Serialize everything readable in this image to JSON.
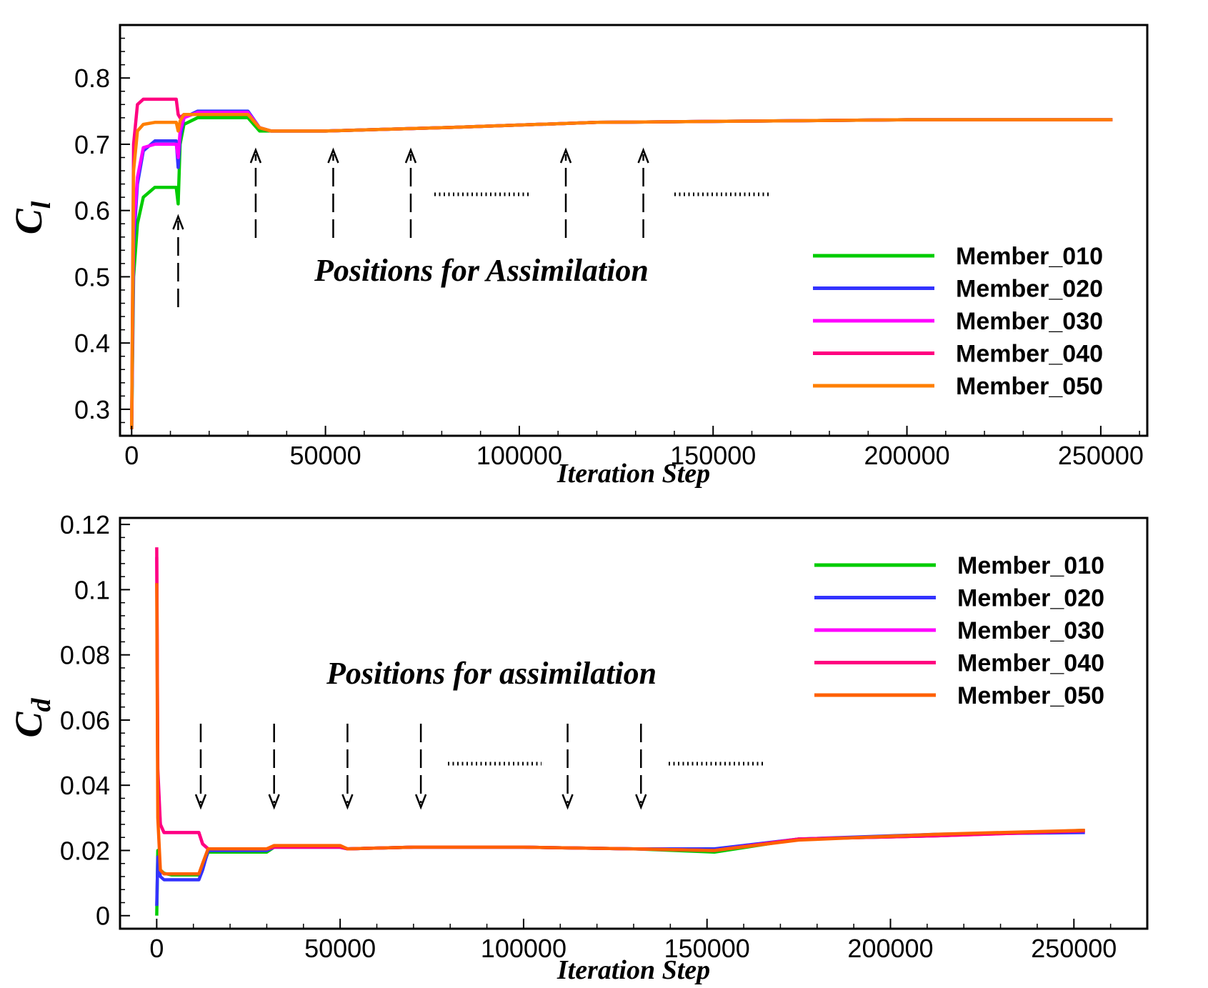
{
  "chart_data": [
    {
      "type": "line",
      "title": "",
      "xlabel": "Iteration Step",
      "ylabel_main": "C",
      "ylabel_sub": "l",
      "xlim": [
        -3000,
        262000
      ],
      "ylim": [
        0.26,
        0.88
      ],
      "x_ticks": [
        "0",
        "50000",
        "100000",
        "150000",
        "200000",
        "250000"
      ],
      "y_ticks": [
        "0.3",
        "0.4",
        "0.5",
        "0.6",
        "0.7",
        "0.8"
      ],
      "grid": false,
      "legend_position": "lower-right",
      "annotation": "Positions for Assimilation",
      "assimilation_steps": [
        12000,
        32000,
        52000,
        72000,
        112000,
        132000
      ],
      "series": [
        {
          "name": "Member_010",
          "color": "#00cc00",
          "x": [
            0,
            500,
            1500,
            3000,
            6000,
            11500,
            12000,
            12500,
            13500,
            17000,
            30000,
            33000,
            36000,
            50000,
            80000,
            120000,
            160000,
            200000,
            253000
          ],
          "y": [
            0.27,
            0.5,
            0.58,
            0.62,
            0.635,
            0.635,
            0.61,
            0.7,
            0.73,
            0.74,
            0.74,
            0.72,
            0.72,
            0.72,
            0.725,
            0.733,
            0.735,
            0.737,
            0.737
          ]
        },
        {
          "name": "Member_020",
          "color": "#3333ff",
          "x": [
            0,
            500,
            1500,
            3000,
            6000,
            11500,
            12000,
            12500,
            13500,
            17000,
            30000,
            33000,
            36000,
            50000,
            80000,
            120000,
            160000,
            200000,
            253000
          ],
          "y": [
            0.27,
            0.55,
            0.64,
            0.69,
            0.705,
            0.705,
            0.665,
            0.71,
            0.74,
            0.75,
            0.75,
            0.725,
            0.72,
            0.72,
            0.725,
            0.733,
            0.735,
            0.737,
            0.737
          ]
        },
        {
          "name": "Member_030",
          "color": "#ff00ff",
          "x": [
            0,
            500,
            1500,
            3000,
            6000,
            11500,
            12000,
            12500,
            13500,
            17000,
            30000,
            33000,
            36000,
            50000,
            80000,
            120000,
            160000,
            200000,
            253000
          ],
          "y": [
            0.27,
            0.57,
            0.65,
            0.695,
            0.7,
            0.7,
            0.68,
            0.72,
            0.74,
            0.748,
            0.748,
            0.725,
            0.72,
            0.72,
            0.725,
            0.733,
            0.735,
            0.737,
            0.737
          ]
        },
        {
          "name": "Member_040",
          "color": "#ff0080",
          "x": [
            0,
            500,
            1500,
            3000,
            6000,
            11500,
            12000,
            12500,
            13500,
            17000,
            30000,
            33000,
            36000,
            50000,
            80000,
            120000,
            160000,
            200000,
            253000
          ],
          "y": [
            0.27,
            0.7,
            0.76,
            0.768,
            0.768,
            0.768,
            0.745,
            0.74,
            0.745,
            0.745,
            0.745,
            0.725,
            0.72,
            0.72,
            0.725,
            0.733,
            0.735,
            0.737,
            0.737
          ]
        },
        {
          "name": "Member_050",
          "color": "#ff7f00",
          "x": [
            0,
            500,
            1500,
            3000,
            6000,
            11500,
            12000,
            12500,
            13500,
            17000,
            30000,
            33000,
            36000,
            50000,
            80000,
            120000,
            160000,
            200000,
            253000
          ],
          "y": [
            0.27,
            0.66,
            0.72,
            0.73,
            0.733,
            0.733,
            0.72,
            0.735,
            0.745,
            0.745,
            0.745,
            0.725,
            0.72,
            0.72,
            0.725,
            0.733,
            0.735,
            0.737,
            0.737
          ]
        }
      ]
    },
    {
      "type": "line",
      "title": "",
      "xlabel": "Iteration Step",
      "ylabel_main": "C",
      "ylabel_sub": "d",
      "xlim": [
        -10000,
        270000
      ],
      "ylim": [
        -0.004,
        0.122
      ],
      "x_ticks": [
        "0",
        "50000",
        "100000",
        "150000",
        "200000",
        "250000"
      ],
      "y_ticks": [
        "0",
        "0.02",
        "0.04",
        "0.06",
        "0.08",
        "0.1",
        "0.12"
      ],
      "grid": false,
      "legend_position": "top-right",
      "annotation": "Positions for assimilation",
      "assimilation_steps": [
        12000,
        32000,
        52000,
        72000,
        112000,
        132000
      ],
      "series": [
        {
          "name": "Member_010",
          "color": "#00cc00",
          "x": [
            0,
            300,
            1000,
            2000,
            4000,
            11500,
            12500,
            14000,
            30000,
            32000,
            34000,
            50000,
            52000,
            70000,
            100000,
            130000,
            152000,
            175000,
            213000,
            253000
          ],
          "y": [
            0.0,
            0.02,
            0.014,
            0.013,
            0.0125,
            0.0125,
            0.015,
            0.0195,
            0.0195,
            0.021,
            0.021,
            0.021,
            0.0205,
            0.021,
            0.021,
            0.0205,
            0.0195,
            0.0235,
            0.0245,
            0.0262
          ]
        },
        {
          "name": "Member_020",
          "color": "#3333ff",
          "x": [
            0,
            300,
            1000,
            2000,
            4000,
            11500,
            12500,
            14000,
            30000,
            32000,
            34000,
            50000,
            52000,
            70000,
            100000,
            130000,
            152000,
            175000,
            213000,
            253000
          ],
          "y": [
            0.003,
            0.018,
            0.012,
            0.011,
            0.011,
            0.011,
            0.014,
            0.02,
            0.02,
            0.021,
            0.021,
            0.021,
            0.0205,
            0.021,
            0.021,
            0.0205,
            0.0205,
            0.0235,
            0.025,
            0.0255
          ]
        },
        {
          "name": "Member_030",
          "color": "#ff00ff",
          "x": [
            0,
            300,
            1000,
            2000,
            4000,
            11500,
            12500,
            14000,
            30000,
            32000,
            34000,
            50000,
            52000,
            70000,
            100000,
            130000,
            152000,
            175000,
            213000,
            253000
          ],
          "y": [
            0.11,
            0.04,
            0.028,
            0.0255,
            0.0255,
            0.0255,
            0.022,
            0.0205,
            0.0205,
            0.021,
            0.021,
            0.021,
            0.0205,
            0.021,
            0.021,
            0.0205,
            0.02,
            0.0235,
            0.0245,
            0.026
          ]
        },
        {
          "name": "Member_040",
          "color": "#ff0080",
          "x": [
            0,
            300,
            1000,
            2000,
            4000,
            11500,
            12500,
            14000,
            30000,
            32000,
            34000,
            50000,
            52000,
            70000,
            100000,
            130000,
            152000,
            175000,
            213000,
            253000
          ],
          "y": [
            0.113,
            0.045,
            0.028,
            0.0255,
            0.0255,
            0.0255,
            0.022,
            0.0205,
            0.0205,
            0.021,
            0.021,
            0.021,
            0.0205,
            0.021,
            0.021,
            0.0205,
            0.02,
            0.0235,
            0.0245,
            0.026
          ]
        },
        {
          "name": "Member_050",
          "color": "#ff6000",
          "x": [
            0,
            300,
            1000,
            2000,
            4000,
            11500,
            12500,
            14000,
            30000,
            32000,
            34000,
            50000,
            52000,
            70000,
            100000,
            130000,
            152000,
            175000,
            213000,
            253000
          ],
          "y": [
            0.102,
            0.03,
            0.014,
            0.0128,
            0.0128,
            0.0128,
            0.016,
            0.0205,
            0.0205,
            0.0215,
            0.0215,
            0.0215,
            0.0205,
            0.021,
            0.021,
            0.0205,
            0.02,
            0.0232,
            0.025,
            0.0262
          ]
        }
      ]
    }
  ]
}
